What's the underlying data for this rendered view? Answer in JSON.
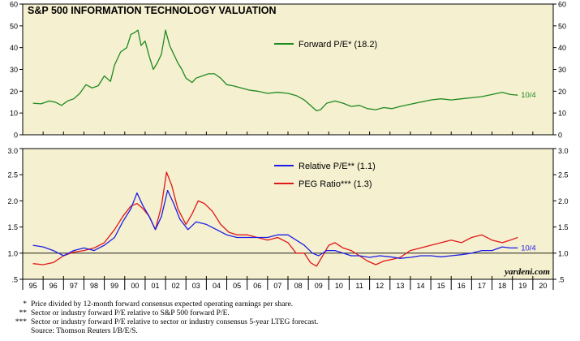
{
  "chart_data": [
    {
      "type": "line",
      "title": "S&P 500 INFORMATION TECHNOLOGY VALUATION",
      "ylim": [
        0,
        60
      ],
      "yticks": [
        0,
        10,
        20,
        30,
        40,
        50,
        60
      ],
      "xlim": [
        1994.5,
        2020.5
      ],
      "grid": false,
      "legend_position": "top-center",
      "series": [
        {
          "name": "Forward P/E* (18.2)",
          "color": "#1f8a1f",
          "end_label": "10/4",
          "points": [
            [
              1995.0,
              14.5
            ],
            [
              1995.4,
              14.2
            ],
            [
              1995.8,
              15.5
            ],
            [
              1996.1,
              15.0
            ],
            [
              1996.4,
              13.5
            ],
            [
              1996.7,
              15.5
            ],
            [
              1997.0,
              16.5
            ],
            [
              1997.3,
              19.0
            ],
            [
              1997.6,
              23.0
            ],
            [
              1997.9,
              21.5
            ],
            [
              1998.2,
              22.5
            ],
            [
              1998.5,
              27.0
            ],
            [
              1998.8,
              24.5
            ],
            [
              1999.0,
              32.0
            ],
            [
              1999.3,
              38.0
            ],
            [
              1999.6,
              40.0
            ],
            [
              1999.8,
              46.0
            ],
            [
              2000.0,
              47.0
            ],
            [
              2000.15,
              48.0
            ],
            [
              2000.3,
              41.0
            ],
            [
              2000.5,
              43.0
            ],
            [
              2000.7,
              36.0
            ],
            [
              2000.9,
              30.0
            ],
            [
              2001.1,
              33.0
            ],
            [
              2001.3,
              37.0
            ],
            [
              2001.5,
              48.0
            ],
            [
              2001.7,
              41.0
            ],
            [
              2001.9,
              37.0
            ],
            [
              2002.1,
              33.0
            ],
            [
              2002.3,
              30.0
            ],
            [
              2002.5,
              26.0
            ],
            [
              2002.8,
              24.0
            ],
            [
              2003.0,
              26.0
            ],
            [
              2003.3,
              27.0
            ],
            [
              2003.6,
              28.0
            ],
            [
              2003.9,
              28.0
            ],
            [
              2004.2,
              26.0
            ],
            [
              2004.5,
              23.0
            ],
            [
              2004.8,
              22.5
            ],
            [
              2005.2,
              21.5
            ],
            [
              2005.6,
              20.5
            ],
            [
              2006.0,
              20.0
            ],
            [
              2006.5,
              19.0
            ],
            [
              2007.0,
              19.5
            ],
            [
              2007.5,
              19.0
            ],
            [
              2007.9,
              18.0
            ],
            [
              2008.3,
              16.0
            ],
            [
              2008.6,
              13.5
            ],
            [
              2008.9,
              11.0
            ],
            [
              2009.1,
              11.5
            ],
            [
              2009.4,
              14.5
            ],
            [
              2009.8,
              15.5
            ],
            [
              2010.2,
              14.5
            ],
            [
              2010.6,
              13.0
            ],
            [
              2011.0,
              13.5
            ],
            [
              2011.4,
              12.0
            ],
            [
              2011.8,
              11.5
            ],
            [
              2012.2,
              12.5
            ],
            [
              2012.6,
              12.0
            ],
            [
              2013.0,
              13.0
            ],
            [
              2013.5,
              14.0
            ],
            [
              2014.0,
              15.0
            ],
            [
              2014.5,
              16.0
            ],
            [
              2015.0,
              16.5
            ],
            [
              2015.5,
              16.0
            ],
            [
              2016.0,
              16.5
            ],
            [
              2016.5,
              17.0
            ],
            [
              2017.0,
              17.5
            ],
            [
              2017.5,
              18.5
            ],
            [
              2018.0,
              19.5
            ],
            [
              2018.4,
              18.5
            ],
            [
              2018.76,
              18.2
            ]
          ]
        }
      ]
    },
    {
      "type": "line",
      "ylim": [
        0.5,
        3.0
      ],
      "yticks": [
        "3.0",
        "2.5",
        "2.0",
        "1.5",
        "1.0",
        ".5"
      ],
      "ytick_values": [
        3.0,
        2.5,
        2.0,
        1.5,
        1.0,
        0.5
      ],
      "reference_line": 1.0,
      "xlim": [
        1994.5,
        2020.5
      ],
      "xtick_labels": [
        "95",
        "96",
        "97",
        "98",
        "99",
        "00",
        "01",
        "02",
        "03",
        "04",
        "05",
        "06",
        "07",
        "08",
        "09",
        "10",
        "11",
        "12",
        "13",
        "14",
        "15",
        "16",
        "17",
        "18",
        "19",
        "20"
      ],
      "grid": false,
      "legend_position": "top-center",
      "series": [
        {
          "name": "Relative P/E** (1.1)",
          "color": "#1e1ee6",
          "end_label": "10/4",
          "points": [
            [
              1995.0,
              1.15
            ],
            [
              1995.5,
              1.12
            ],
            [
              1996.0,
              1.05
            ],
            [
              1996.5,
              0.95
            ],
            [
              1997.0,
              1.05
            ],
            [
              1997.5,
              1.1
            ],
            [
              1998.0,
              1.05
            ],
            [
              1998.5,
              1.15
            ],
            [
              1999.0,
              1.3
            ],
            [
              1999.4,
              1.6
            ],
            [
              1999.8,
              1.85
            ],
            [
              2000.1,
              2.15
            ],
            [
              2000.4,
              1.9
            ],
            [
              2000.7,
              1.7
            ],
            [
              2001.0,
              1.45
            ],
            [
              2001.3,
              1.7
            ],
            [
              2001.6,
              2.2
            ],
            [
              2001.9,
              1.95
            ],
            [
              2002.2,
              1.65
            ],
            [
              2002.6,
              1.45
            ],
            [
              2003.0,
              1.6
            ],
            [
              2003.5,
              1.55
            ],
            [
              2004.0,
              1.45
            ],
            [
              2004.5,
              1.35
            ],
            [
              2005.0,
              1.3
            ],
            [
              2005.5,
              1.3
            ],
            [
              2006.0,
              1.3
            ],
            [
              2006.5,
              1.3
            ],
            [
              2007.0,
              1.35
            ],
            [
              2007.5,
              1.35
            ],
            [
              2007.9,
              1.25
            ],
            [
              2008.3,
              1.15
            ],
            [
              2008.7,
              1.0
            ],
            [
              2009.0,
              0.95
            ],
            [
              2009.4,
              1.05
            ],
            [
              2009.8,
              1.05
            ],
            [
              2010.2,
              1.0
            ],
            [
              2010.6,
              0.95
            ],
            [
              2011.0,
              0.95
            ],
            [
              2011.5,
              0.92
            ],
            [
              2012.0,
              0.95
            ],
            [
              2012.5,
              0.93
            ],
            [
              2013.0,
              0.9
            ],
            [
              2013.5,
              0.92
            ],
            [
              2014.0,
              0.95
            ],
            [
              2014.5,
              0.95
            ],
            [
              2015.0,
              0.93
            ],
            [
              2015.5,
              0.95
            ],
            [
              2016.0,
              0.97
            ],
            [
              2016.5,
              1.0
            ],
            [
              2017.0,
              1.05
            ],
            [
              2017.5,
              1.05
            ],
            [
              2018.0,
              1.12
            ],
            [
              2018.4,
              1.1
            ],
            [
              2018.76,
              1.1
            ]
          ]
        },
        {
          "name": "PEG Ratio*** (1.3)",
          "color": "#e01818",
          "points": [
            [
              1995.0,
              0.8
            ],
            [
              1995.5,
              0.78
            ],
            [
              1996.0,
              0.82
            ],
            [
              1996.5,
              0.95
            ],
            [
              1997.0,
              1.02
            ],
            [
              1997.5,
              1.05
            ],
            [
              1998.0,
              1.1
            ],
            [
              1998.5,
              1.2
            ],
            [
              1999.0,
              1.45
            ],
            [
              1999.4,
              1.7
            ],
            [
              1999.8,
              1.9
            ],
            [
              2000.1,
              1.95
            ],
            [
              2000.4,
              1.85
            ],
            [
              2000.7,
              1.7
            ],
            [
              2001.0,
              1.45
            ],
            [
              2001.3,
              1.9
            ],
            [
              2001.55,
              2.55
            ],
            [
              2001.8,
              2.3
            ],
            [
              2002.1,
              1.85
            ],
            [
              2002.5,
              1.55
            ],
            [
              2002.8,
              1.75
            ],
            [
              2003.1,
              2.0
            ],
            [
              2003.4,
              1.95
            ],
            [
              2003.8,
              1.8
            ],
            [
              2004.2,
              1.55
            ],
            [
              2004.6,
              1.4
            ],
            [
              2005.0,
              1.35
            ],
            [
              2005.5,
              1.35
            ],
            [
              2006.0,
              1.3
            ],
            [
              2006.5,
              1.25
            ],
            [
              2007.0,
              1.3
            ],
            [
              2007.5,
              1.2
            ],
            [
              2007.9,
              1.0
            ],
            [
              2008.3,
              1.0
            ],
            [
              2008.6,
              0.82
            ],
            [
              2008.9,
              0.75
            ],
            [
              2009.2,
              0.95
            ],
            [
              2009.5,
              1.15
            ],
            [
              2009.8,
              1.2
            ],
            [
              2010.2,
              1.1
            ],
            [
              2010.6,
              1.05
            ],
            [
              2011.0,
              0.95
            ],
            [
              2011.4,
              0.85
            ],
            [
              2011.8,
              0.78
            ],
            [
              2012.2,
              0.85
            ],
            [
              2012.6,
              0.88
            ],
            [
              2013.0,
              0.92
            ],
            [
              2013.5,
              1.05
            ],
            [
              2014.0,
              1.1
            ],
            [
              2014.5,
              1.15
            ],
            [
              2015.0,
              1.2
            ],
            [
              2015.5,
              1.25
            ],
            [
              2016.0,
              1.2
            ],
            [
              2016.5,
              1.3
            ],
            [
              2017.0,
              1.35
            ],
            [
              2017.5,
              1.25
            ],
            [
              2018.0,
              1.2
            ],
            [
              2018.4,
              1.25
            ],
            [
              2018.76,
              1.3
            ]
          ]
        }
      ]
    }
  ],
  "watermark": "yardeni.com",
  "footnotes": [
    {
      "mark": "*",
      "text": "Price divided by 12-month forward consensus expected operating earnings per share."
    },
    {
      "mark": "**",
      "text": "Sector or industry forward P/E relative to S&P 500 forward P/E."
    },
    {
      "mark": "***",
      "text": "Sector or industry forward P/E relative to sector or industry consensus 5-year LTEG forecast."
    }
  ],
  "source": "Source: Thomson Reuters I/B/E/S."
}
